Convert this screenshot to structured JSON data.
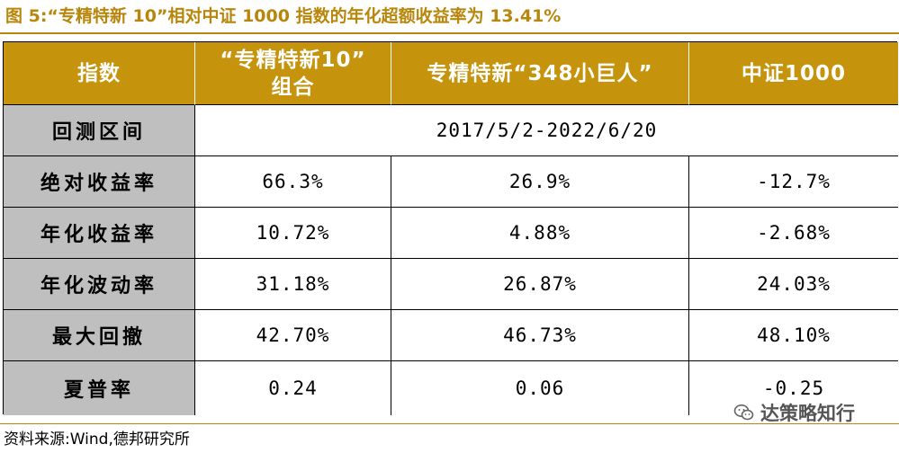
{
  "title": "图 5:“专精特新 10”相对中证 1000 指数的年化超额收益率为 13.41%",
  "table": {
    "headers": [
      "指数",
      "“专精特新10”\n组合",
      "专精特新“348小巨人”",
      "中证1000"
    ],
    "period": {
      "label": "回测区间",
      "value": "2017/5/2-2022/6/20"
    },
    "rows": [
      {
        "label": "绝对收益率",
        "values": [
          "66.3%",
          "26.9%",
          "-12.7%"
        ]
      },
      {
        "label": "年化收益率",
        "values": [
          "10.72%",
          "4.88%",
          "-2.68%"
        ]
      },
      {
        "label": "年化波动率",
        "values": [
          "31.18%",
          "26.87%",
          "24.03%"
        ]
      },
      {
        "label": "最大回撤",
        "values": [
          "42.70%",
          "46.73%",
          "48.10%"
        ]
      },
      {
        "label": "夏普率",
        "values": [
          "0.24",
          "0.06",
          "-0.25"
        ]
      }
    ]
  },
  "source": "资料来源:Wind,德邦研究所",
  "watermark": {
    "text": "达策略知行",
    "icon": "wechat-icon"
  }
}
